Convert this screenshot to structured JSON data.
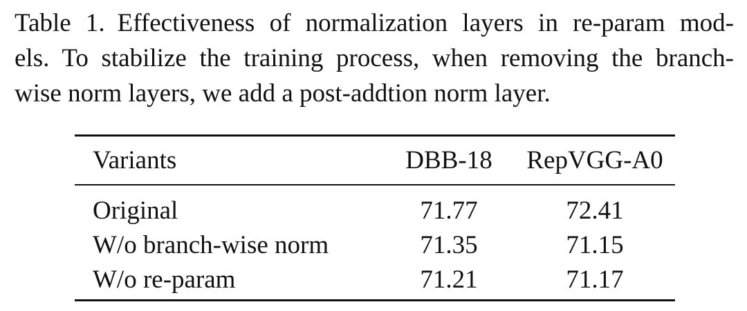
{
  "caption": {
    "label": "Table 1.",
    "line1": "Effectiveness of normalization layers in re-param mod-",
    "line2": "els. To stabilize the training process, when removing the branch-",
    "line3": "wise norm layers, we add a post-addtion norm layer."
  },
  "table": {
    "headers": [
      "Variants",
      "DBB-18",
      "RepVGG-A0"
    ],
    "rows": [
      [
        "Original",
        "71.77",
        "72.41"
      ],
      [
        "W/o branch-wise norm",
        "71.35",
        "71.15"
      ],
      [
        "W/o re-param",
        "71.21",
        "71.17"
      ]
    ]
  }
}
